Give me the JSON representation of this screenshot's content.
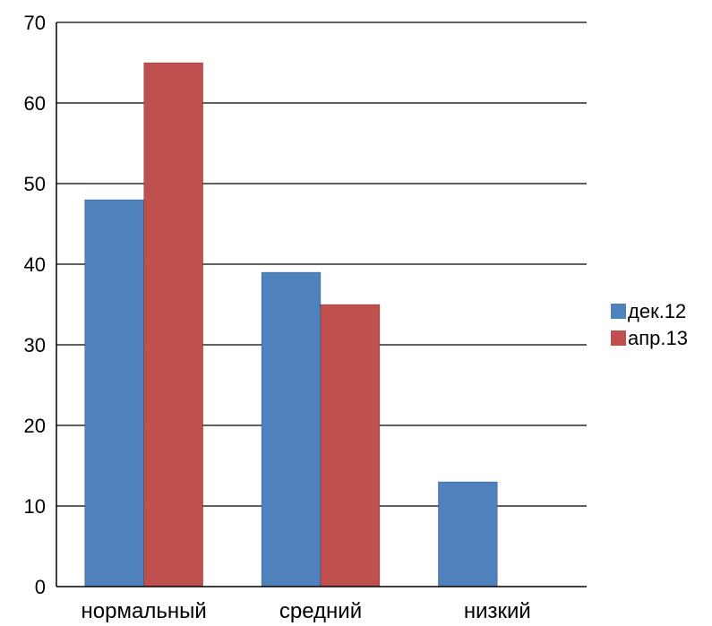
{
  "chart_data": {
    "type": "bar",
    "title": "",
    "xlabel": "",
    "ylabel": "",
    "categories": [
      "нормальный",
      "средний",
      "низкий"
    ],
    "series": [
      {
        "name": "дек.12",
        "color": "#4F81BD",
        "values": [
          48,
          39,
          13
        ]
      },
      {
        "name": "апр.13",
        "color": "#C0504D",
        "values": [
          65,
          35,
          0
        ]
      }
    ],
    "ylim": [
      0,
      70
    ],
    "yticks": [
      "0",
      "10",
      "20",
      "30",
      "40",
      "50",
      "60",
      "70"
    ],
    "grid": true,
    "legend_position": "right"
  }
}
